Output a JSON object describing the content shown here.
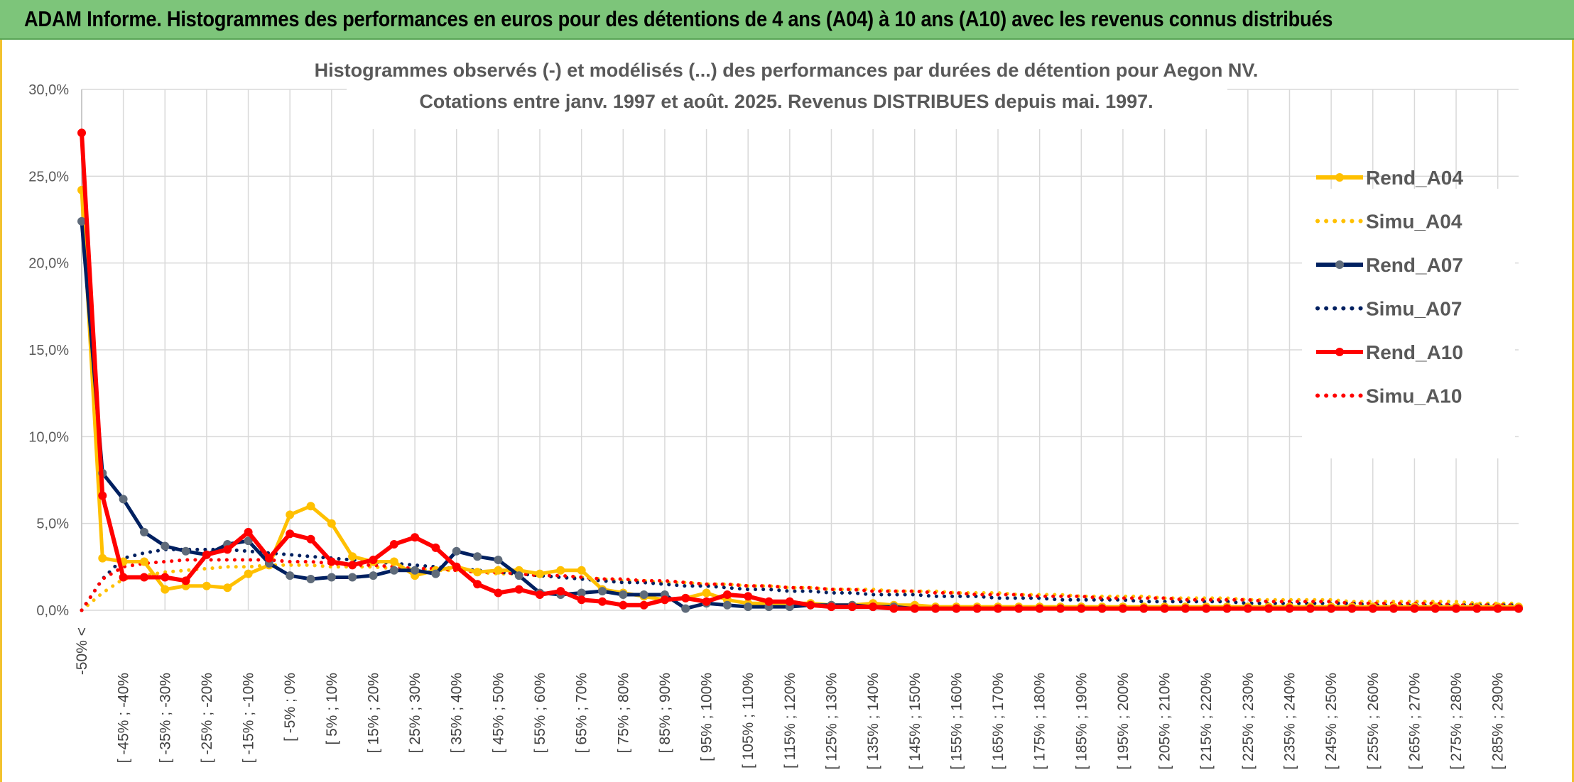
{
  "banner": {
    "title": "ADAM Informe. Histogrammes des performances en euros pour des détentions de 4 ans (A04) à 10 ans (A10) avec les revenus connus distribués"
  },
  "colors": {
    "banner_bg": "#7dc57a",
    "frame_border": "#f2c230",
    "A04": "#ffc000",
    "A07": "#002060",
    "A10": "#ff0000",
    "A07_marker": "#5f6b7a"
  },
  "chart_data": {
    "type": "line",
    "title": "Histogrammes observés (-) et modélisés (...) des performances par durées de détention pour Aegon NV.",
    "subtitle": "Cotations entre janv. 1997 et août. 2025. Revenus DISTRIBUES depuis mai. 1997.",
    "xlabel": "",
    "ylabel": "",
    "ylim": [
      0,
      0.3
    ],
    "y_ticks": [
      "0,0%",
      "5,0%",
      "10,0%",
      "15,0%",
      "20,0%",
      "25,0%",
      "30,0%"
    ],
    "grid": true,
    "legend_position": "right",
    "x_tick_labels": [
      "-50% <",
      "[ -45% ; -40%",
      "[ -35% ; -30%",
      "[ -25% ; -20%",
      "[ -15% ; -10%",
      "[ -5% ; 0%",
      "[ 5% ; 10%",
      "[ 15% ; 20%",
      "[ 25% ; 30%",
      "[ 35% ; 40%",
      "[ 45% ; 50%",
      "[ 55% ; 60%",
      "[ 65% ; 70%",
      "[ 75% ; 80%",
      "[ 85% ; 90%",
      "[ 95% ; 100%",
      "[ 105% ; 110%",
      "[ 115% ; 120%",
      "[ 125% ; 130%",
      "[ 135% ; 140%",
      "[ 145% ; 150%",
      "[ 155% ; 160%",
      "[ 165% ; 170%",
      "[ 175% ; 180%",
      "[ 185% ; 190%",
      "[ 195% ; 200%",
      "[ 205% ; 210%",
      "[ 215% ; 220%",
      "[ 225% ; 230%",
      "[ 235% ; 240%",
      "[ 245% ; 250%",
      "[ 255% ; 260%",
      "[ 265% ; 270%",
      "[ 275% ; 280%",
      "[ 285% ; 290%"
    ],
    "series": [
      {
        "name": "Rend_A04",
        "style": "solid",
        "color": "#ffc000",
        "values": [
          0.242,
          0.03,
          0.028,
          0.028,
          0.012,
          0.014,
          0.014,
          0.013,
          0.021,
          0.026,
          0.055,
          0.06,
          0.05,
          0.031,
          0.028,
          0.028,
          0.02,
          0.023,
          0.025,
          0.022,
          0.023,
          0.023,
          0.021,
          0.023,
          0.023,
          0.012,
          0.01,
          0.008,
          0.006,
          0.007,
          0.01,
          0.006,
          0.004,
          0.004,
          0.004,
          0.004,
          0.003,
          0.003,
          0.004,
          0.003,
          0.003,
          0.002,
          0.002,
          0.002,
          0.002,
          0.002,
          0.002,
          0.002,
          0.002,
          0.002,
          0.002,
          0.002,
          0.002,
          0.002,
          0.002,
          0.002,
          0.002,
          0.002,
          0.002,
          0.002,
          0.002,
          0.002,
          0.002,
          0.002,
          0.002,
          0.002,
          0.002,
          0.002,
          0.002,
          0.002
        ]
      },
      {
        "name": "Simu_A04",
        "style": "dotted",
        "color": "#ffc000",
        "values": [
          0.0,
          0.01,
          0.018,
          0.02,
          0.022,
          0.023,
          0.024,
          0.025,
          0.025,
          0.026,
          0.026,
          0.026,
          0.025,
          0.025,
          0.025,
          0.024,
          0.024,
          0.023,
          0.023,
          0.022,
          0.021,
          0.021,
          0.02,
          0.019,
          0.019,
          0.018,
          0.017,
          0.017,
          0.016,
          0.016,
          0.015,
          0.015,
          0.014,
          0.014,
          0.013,
          0.013,
          0.012,
          0.012,
          0.012,
          0.011,
          0.011,
          0.011,
          0.01,
          0.01,
          0.01,
          0.009,
          0.009,
          0.009,
          0.008,
          0.008,
          0.008,
          0.008,
          0.007,
          0.007,
          0.007,
          0.007,
          0.006,
          0.006,
          0.006,
          0.006,
          0.006,
          0.005,
          0.005,
          0.005,
          0.005,
          0.005,
          0.005,
          0.004,
          0.004,
          0.004
        ]
      },
      {
        "name": "Rend_A07",
        "style": "solid",
        "color": "#002060",
        "values": [
          0.224,
          0.079,
          0.064,
          0.045,
          0.037,
          0.034,
          0.032,
          0.038,
          0.04,
          0.027,
          0.02,
          0.018,
          0.019,
          0.019,
          0.02,
          0.023,
          0.023,
          0.021,
          0.034,
          0.031,
          0.029,
          0.02,
          0.01,
          0.009,
          0.01,
          0.011,
          0.009,
          0.009,
          0.009,
          0.001,
          0.004,
          0.003,
          0.002,
          0.002,
          0.002,
          0.003,
          0.003,
          0.003,
          0.002,
          0.002,
          0.001,
          0.001,
          0.001,
          0.001,
          0.001,
          0.001,
          0.001,
          0.001,
          0.001,
          0.001,
          0.001,
          0.001,
          0.001,
          0.001,
          0.001,
          0.001,
          0.001,
          0.001,
          0.001,
          0.001,
          0.001,
          0.001,
          0.001,
          0.001,
          0.001,
          0.001,
          0.001,
          0.001,
          0.001,
          0.001
        ]
      },
      {
        "name": "Simu_A07",
        "style": "dotted",
        "color": "#002060",
        "values": [
          0.0,
          0.018,
          0.03,
          0.033,
          0.035,
          0.035,
          0.035,
          0.035,
          0.034,
          0.033,
          0.032,
          0.031,
          0.03,
          0.029,
          0.028,
          0.027,
          0.026,
          0.025,
          0.024,
          0.023,
          0.022,
          0.021,
          0.02,
          0.019,
          0.018,
          0.017,
          0.016,
          0.016,
          0.015,
          0.014,
          0.014,
          0.013,
          0.012,
          0.012,
          0.011,
          0.011,
          0.01,
          0.01,
          0.009,
          0.009,
          0.009,
          0.008,
          0.008,
          0.008,
          0.007,
          0.007,
          0.007,
          0.006,
          0.006,
          0.006,
          0.006,
          0.005,
          0.005,
          0.005,
          0.005,
          0.005,
          0.004,
          0.004,
          0.004,
          0.004,
          0.004,
          0.004,
          0.003,
          0.003,
          0.003,
          0.003,
          0.003,
          0.003,
          0.003,
          0.003
        ]
      },
      {
        "name": "Rend_A10",
        "style": "solid",
        "color": "#ff0000",
        "values": [
          0.275,
          0.066,
          0.019,
          0.019,
          0.019,
          0.017,
          0.032,
          0.035,
          0.045,
          0.03,
          0.044,
          0.041,
          0.028,
          0.026,
          0.029,
          0.038,
          0.042,
          0.036,
          0.025,
          0.015,
          0.01,
          0.012,
          0.009,
          0.011,
          0.006,
          0.005,
          0.003,
          0.003,
          0.006,
          0.007,
          0.005,
          0.009,
          0.008,
          0.005,
          0.005,
          0.003,
          0.002,
          0.002,
          0.002,
          0.001,
          0.001,
          0.001,
          0.001,
          0.001,
          0.001,
          0.001,
          0.001,
          0.001,
          0.001,
          0.001,
          0.001,
          0.001,
          0.001,
          0.001,
          0.001,
          0.001,
          0.001,
          0.001,
          0.001,
          0.001,
          0.001,
          0.001,
          0.001,
          0.001,
          0.001,
          0.001,
          0.001,
          0.001,
          0.001,
          0.001
        ]
      },
      {
        "name": "Simu_A10",
        "style": "dotted",
        "color": "#ff0000",
        "values": [
          0.0,
          0.018,
          0.025,
          0.027,
          0.028,
          0.029,
          0.029,
          0.029,
          0.029,
          0.029,
          0.028,
          0.028,
          0.027,
          0.026,
          0.026,
          0.025,
          0.024,
          0.024,
          0.023,
          0.022,
          0.022,
          0.021,
          0.02,
          0.02,
          0.019,
          0.018,
          0.018,
          0.017,
          0.017,
          0.016,
          0.015,
          0.015,
          0.014,
          0.014,
          0.013,
          0.013,
          0.012,
          0.012,
          0.011,
          0.011,
          0.011,
          0.01,
          0.01,
          0.009,
          0.009,
          0.009,
          0.008,
          0.008,
          0.008,
          0.007,
          0.007,
          0.007,
          0.007,
          0.006,
          0.006,
          0.006,
          0.006,
          0.005,
          0.005,
          0.005,
          0.005,
          0.004,
          0.004,
          0.004,
          0.004,
          0.004,
          0.003,
          0.003,
          0.003,
          0.003
        ]
      }
    ]
  }
}
